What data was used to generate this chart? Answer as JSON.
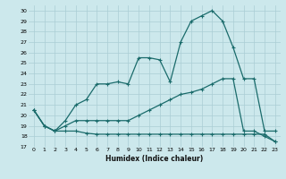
{
  "xlabel": "Humidex (Indice chaleur)",
  "bg_color": "#cce8ec",
  "grid_color": "#aacdd4",
  "line_color": "#1a6b6b",
  "xlim": [
    -0.5,
    23.5
  ],
  "ylim": [
    17,
    30.5
  ],
  "xticks": [
    0,
    1,
    2,
    3,
    4,
    5,
    6,
    7,
    8,
    9,
    10,
    11,
    12,
    13,
    14,
    15,
    16,
    17,
    18,
    19,
    20,
    21,
    22,
    23
  ],
  "yticks": [
    17,
    18,
    19,
    20,
    21,
    22,
    23,
    24,
    25,
    26,
    27,
    28,
    29,
    30
  ],
  "line1_x": [
    0,
    1,
    2,
    3,
    4,
    5,
    6,
    7,
    8,
    9,
    10,
    11,
    12,
    13,
    14,
    15,
    16,
    17,
    18,
    19,
    20,
    21,
    22,
    23
  ],
  "line1_y": [
    20.5,
    19.0,
    18.5,
    19.5,
    21.0,
    21.5,
    23.0,
    23.0,
    23.2,
    23.0,
    25.5,
    25.5,
    25.3,
    23.2,
    27.0,
    29.0,
    29.5,
    30.0,
    29.0,
    26.5,
    23.5,
    23.5,
    18.5,
    18.5
  ],
  "line2_x": [
    0,
    1,
    2,
    3,
    4,
    5,
    6,
    7,
    8,
    9,
    10,
    11,
    12,
    13,
    14,
    15,
    16,
    17,
    18,
    19,
    20,
    21,
    22,
    23
  ],
  "line2_y": [
    20.5,
    19.0,
    18.5,
    19.0,
    19.5,
    19.5,
    19.5,
    19.5,
    19.5,
    19.5,
    20.0,
    20.5,
    21.0,
    21.5,
    22.0,
    22.2,
    22.5,
    23.0,
    23.5,
    23.5,
    18.5,
    18.5,
    18.0,
    17.5
  ],
  "line3_x": [
    0,
    1,
    2,
    3,
    4,
    5,
    6,
    7,
    8,
    9,
    10,
    11,
    12,
    13,
    14,
    15,
    16,
    17,
    18,
    19,
    20,
    21,
    22,
    23
  ],
  "line3_y": [
    20.5,
    19.0,
    18.5,
    18.5,
    18.5,
    18.3,
    18.2,
    18.2,
    18.2,
    18.2,
    18.2,
    18.2,
    18.2,
    18.2,
    18.2,
    18.2,
    18.2,
    18.2,
    18.2,
    18.2,
    18.2,
    18.2,
    18.2,
    17.5
  ],
  "markersize": 3,
  "linewidth": 0.9
}
